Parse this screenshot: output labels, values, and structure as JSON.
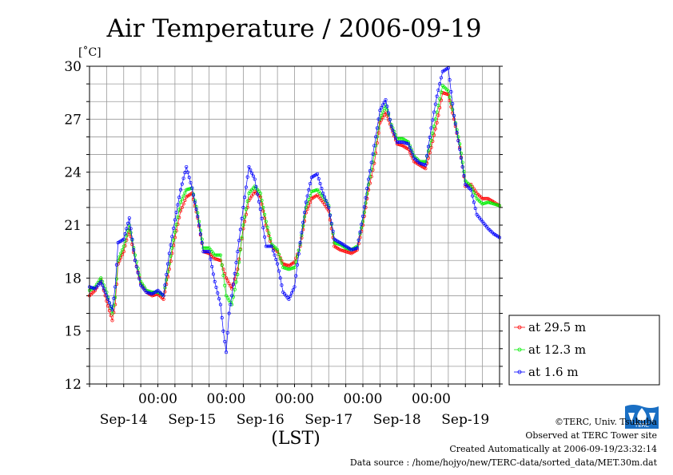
{
  "chart_data": {
    "type": "line",
    "title": "Air Temperature / 2006-09-19",
    "ylabel": "[˚C]",
    "xlabel": "(LST)",
    "ylim": [
      12,
      30
    ],
    "yticks": [
      12,
      15,
      18,
      21,
      24,
      27,
      30
    ],
    "xlim": [
      0,
      6
    ],
    "time_ticks": [
      "00:00",
      "00:00",
      "00:00",
      "00:00",
      "00:00"
    ],
    "time_tick_positions": [
      1,
      2,
      3,
      4,
      5
    ],
    "date_labels": [
      "Sep-14",
      "Sep-15",
      "Sep-16",
      "Sep-17",
      "Sep-18",
      "Sep-19"
    ],
    "date_label_positions": [
      0.5,
      1.5,
      2.5,
      3.5,
      4.5,
      5.5
    ],
    "x_unit": "days",
    "grid": true,
    "legend_position": "right",
    "series": [
      {
        "name": "at 29.5 m",
        "color": "#ff0000",
        "x": [
          0,
          0.083,
          0.167,
          0.25,
          0.333,
          0.375,
          0.417,
          0.5,
          0.583,
          0.667,
          0.75,
          0.833,
          0.917,
          1.0,
          1.083,
          1.167,
          1.25,
          1.333,
          1.417,
          1.5,
          1.583,
          1.667,
          1.75,
          1.833,
          1.917,
          2.0,
          2.083,
          2.167,
          2.25,
          2.333,
          2.417,
          2.5,
          2.583,
          2.667,
          2.75,
          2.833,
          2.917,
          3.0,
          3.083,
          3.167,
          3.25,
          3.333,
          3.417,
          3.5,
          3.583,
          3.667,
          3.75,
          3.833,
          3.917,
          4.0,
          4.083,
          4.167,
          4.25,
          4.333,
          4.417,
          4.5,
          4.583,
          4.667,
          4.75,
          4.833,
          4.917,
          5.0,
          5.083,
          5.167,
          5.25,
          5.333,
          5.417,
          5.5,
          5.583,
          5.667,
          5.75,
          5.833,
          5.917,
          6.0
        ],
        "y": [
          17.0,
          17.3,
          17.9,
          16.7,
          15.6,
          16.5,
          18.8,
          19.5,
          20.8,
          19.0,
          17.7,
          17.2,
          17.0,
          17.1,
          16.8,
          18.5,
          20.3,
          21.8,
          22.6,
          22.8,
          21.4,
          19.5,
          19.4,
          19.1,
          19.0,
          18.0,
          17.4,
          18.5,
          20.8,
          22.4,
          22.9,
          22.6,
          21.0,
          19.8,
          19.5,
          18.8,
          18.7,
          18.9,
          19.8,
          21.7,
          22.5,
          22.7,
          22.3,
          21.8,
          19.8,
          19.6,
          19.5,
          19.4,
          19.6,
          21.0,
          23.0,
          24.5,
          26.8,
          27.4,
          26.5,
          25.6,
          25.5,
          25.3,
          24.6,
          24.4,
          24.2,
          25.4,
          26.8,
          28.5,
          28.4,
          27.0,
          25.4,
          23.2,
          23.3,
          22.8,
          22.5,
          22.5,
          22.3,
          22.1
        ]
      },
      {
        "name": "at 12.3 m",
        "color": "#00ee00",
        "x": [
          0,
          0.083,
          0.167,
          0.25,
          0.333,
          0.375,
          0.417,
          0.5,
          0.583,
          0.667,
          0.75,
          0.833,
          0.917,
          1.0,
          1.083,
          1.167,
          1.25,
          1.333,
          1.417,
          1.5,
          1.583,
          1.667,
          1.75,
          1.833,
          1.917,
          2.0,
          2.083,
          2.167,
          2.25,
          2.333,
          2.417,
          2.5,
          2.583,
          2.667,
          2.75,
          2.833,
          2.917,
          3.0,
          3.083,
          3.167,
          3.25,
          3.333,
          3.417,
          3.5,
          3.583,
          3.667,
          3.75,
          3.833,
          3.917,
          4.0,
          4.083,
          4.167,
          4.25,
          4.333,
          4.417,
          4.5,
          4.583,
          4.667,
          4.75,
          4.833,
          4.917,
          5.0,
          5.083,
          5.167,
          5.25,
          5.333,
          5.417,
          5.5,
          5.583,
          5.667,
          5.75,
          5.833,
          5.917,
          6.0
        ],
        "y": [
          17.3,
          17.5,
          18.0,
          17.2,
          16.0,
          16.9,
          19.0,
          19.8,
          21.0,
          19.3,
          17.8,
          17.3,
          17.2,
          17.2,
          17.0,
          18.8,
          20.6,
          22.3,
          23.0,
          23.1,
          21.7,
          19.7,
          19.7,
          19.3,
          19.3,
          17.0,
          16.5,
          18.2,
          21.0,
          22.8,
          23.2,
          22.8,
          21.2,
          19.9,
          19.6,
          18.6,
          18.5,
          18.6,
          19.9,
          22.0,
          22.9,
          23.0,
          22.6,
          22.1,
          20.0,
          19.9,
          19.7,
          19.6,
          19.8,
          21.2,
          23.3,
          25.0,
          27.0,
          27.8,
          26.7,
          25.9,
          25.9,
          25.7,
          24.9,
          24.6,
          24.6,
          25.8,
          27.4,
          28.9,
          28.6,
          27.2,
          25.6,
          23.5,
          23.2,
          22.5,
          22.2,
          22.3,
          22.2,
          22.1
        ]
      },
      {
        "name": "at 1.6 m",
        "color": "#0000ff",
        "x": [
          0,
          0.083,
          0.167,
          0.25,
          0.333,
          0.375,
          0.417,
          0.5,
          0.583,
          0.667,
          0.75,
          0.833,
          0.917,
          1.0,
          1.083,
          1.167,
          1.25,
          1.333,
          1.417,
          1.5,
          1.583,
          1.667,
          1.75,
          1.833,
          1.917,
          1.958,
          2.0,
          2.042,
          2.083,
          2.167,
          2.25,
          2.333,
          2.417,
          2.5,
          2.583,
          2.667,
          2.75,
          2.833,
          2.917,
          3.0,
          3.083,
          3.167,
          3.25,
          3.333,
          3.417,
          3.5,
          3.583,
          3.667,
          3.75,
          3.833,
          3.917,
          4.0,
          4.083,
          4.167,
          4.25,
          4.333,
          4.417,
          4.5,
          4.583,
          4.667,
          4.75,
          4.833,
          4.917,
          5.0,
          5.083,
          5.167,
          5.25,
          5.333,
          5.417,
          5.5,
          5.583,
          5.667,
          5.75,
          5.833,
          5.917,
          6.0
        ],
        "y": [
          17.5,
          17.4,
          17.8,
          17.0,
          16.2,
          17.5,
          20.0,
          20.2,
          21.4,
          19.0,
          17.6,
          17.2,
          17.1,
          17.3,
          17.0,
          19.4,
          21.3,
          23.0,
          24.3,
          23.1,
          21.5,
          19.5,
          19.5,
          17.8,
          16.5,
          15.0,
          13.8,
          16.0,
          17.0,
          19.5,
          22.0,
          24.3,
          23.6,
          21.9,
          19.8,
          19.8,
          18.8,
          17.2,
          16.8,
          17.5,
          20.0,
          22.3,
          23.7,
          23.9,
          22.8,
          22.0,
          20.2,
          20.0,
          19.8,
          19.6,
          19.7,
          21.5,
          23.6,
          25.5,
          27.5,
          28.1,
          26.6,
          25.7,
          25.7,
          25.6,
          24.8,
          24.5,
          24.4,
          26.5,
          28.3,
          29.7,
          29.9,
          27.2,
          25.3,
          23.3,
          23.0,
          21.6,
          21.2,
          20.8,
          20.5,
          20.3
        ]
      }
    ]
  },
  "credits": {
    "copyright": "©TERC, Univ. Tsukuba",
    "observed": "Observed at TERC Tower site",
    "created": "Created Automatically at 2006-09-19/23:32:14",
    "source": "Data source : /home/hojyo/new/TERC-data/sorted_data/MET.30m.dat",
    "logo_text": "TERC"
  }
}
